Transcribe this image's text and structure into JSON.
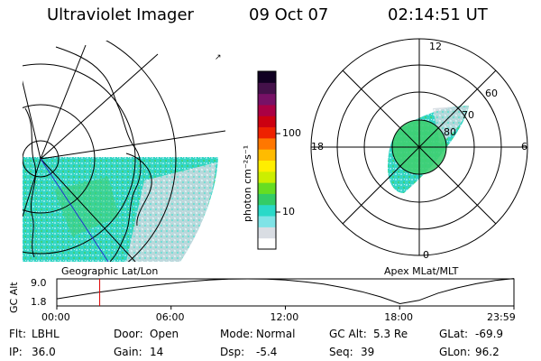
{
  "header": {
    "instrument": "Ultraviolet Imager",
    "date": "09 Oct 07",
    "time": "02:14:51 UT"
  },
  "geo_panel": {
    "label": "Geographic Lat/Lon"
  },
  "polar_panel": {
    "label": "Apex MLat/MLT",
    "mlt_labels": {
      "top": "12",
      "left": "18",
      "right": "6",
      "bottom": "0"
    },
    "lat_labels": [
      "60",
      "70",
      "80"
    ]
  },
  "colorbar": {
    "unit_label": "photon cm⁻²s⁻¹",
    "ticks": [
      "100",
      "10"
    ],
    "scale": "log",
    "colors": [
      "#ffffff",
      "#d9dde3",
      "#7fe3e6",
      "#2ad9c8",
      "#33cc66",
      "#66dd22",
      "#ccee00",
      "#ffee00",
      "#ffbb00",
      "#ff7700",
      "#ee2200",
      "#cc0011",
      "#aa0044",
      "#771166",
      "#44114a",
      "#110022"
    ]
  },
  "chart_data": {
    "type": "line",
    "title": "",
    "ylabel": "GC Alt",
    "yticks": [
      "9.0",
      "1.8"
    ],
    "ylim": [
      1.8,
      9.0
    ],
    "xticks": [
      "00:00",
      "06:00",
      "12:00",
      "18:00",
      "23:59"
    ],
    "series": [
      {
        "x": [
          0.0,
          1.0,
          2.0,
          3.0,
          4.0,
          5.0,
          6.0,
          7.0,
          8.0,
          9.0,
          10.0,
          11.0,
          12.0,
          13.0,
          14.0,
          15.0,
          16.0,
          17.0,
          18.0,
          19.0,
          20.0,
          21.0,
          22.0,
          23.0,
          23.98
        ],
        "y": [
          3.7,
          4.5,
          5.3,
          6.0,
          6.7,
          7.3,
          7.8,
          8.3,
          8.7,
          8.95,
          9.0,
          8.95,
          8.7,
          8.2,
          7.6,
          6.7,
          5.6,
          4.2,
          2.4,
          3.3,
          5.2,
          6.6,
          7.7,
          8.6,
          9.1
        ]
      }
    ],
    "marker_time": 2.25,
    "marker_color": "#dd0000"
  },
  "status": {
    "filter_label": "Flt:",
    "filter_value": "LBHL",
    "door_label": "Door:",
    "door_value": "Open",
    "mode_label": "Mode:",
    "mode_value": "Normal",
    "gcalt_label": "GC Alt:",
    "gcalt_value": "5.3 Re",
    "glat_label": "GLat:",
    "glat_value": "-69.9",
    "ip_label": "IP:",
    "ip_value": "36.0",
    "gain_label": "Gain:",
    "gain_value": "14",
    "dsp_label": "Dsp:",
    "dsp_value": "-5.4",
    "seq_label": "Seq:",
    "seq_value": "39",
    "glon_label": "GLon:",
    "glon_value": "96.2"
  }
}
